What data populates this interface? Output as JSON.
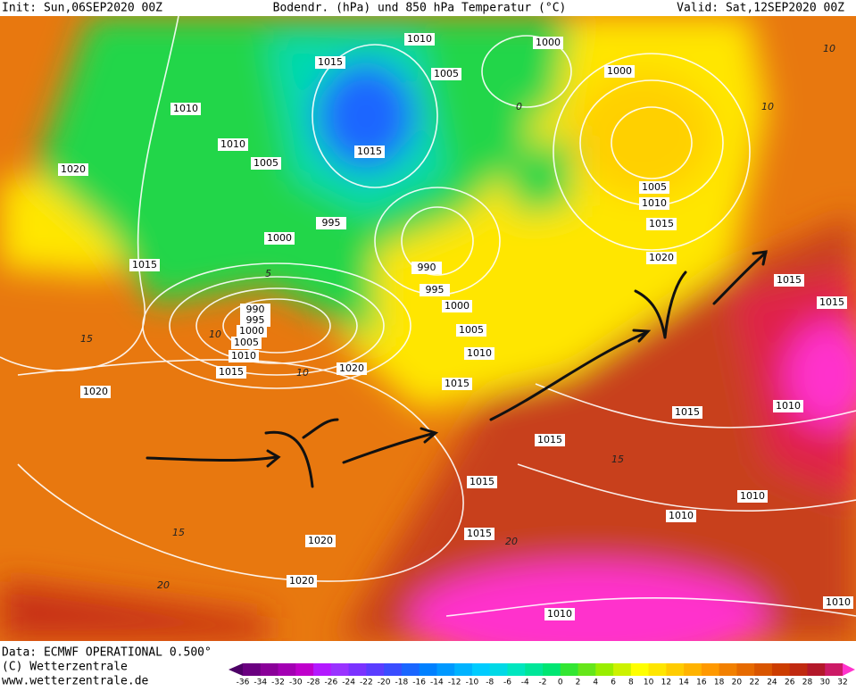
{
  "header": {
    "init": "Init: Sun,06SEP2020 00Z",
    "title": "Bodendr. (hPa) und 850 hPa Temperatur (°C)",
    "valid": "Valid: Sat,12SEP2020 00Z"
  },
  "isobar_labels": [
    1010,
    1015,
    1005,
    1000,
    1000,
    1010,
    1010,
    1005,
    1015,
    1020,
    1005,
    1010,
    1015,
    995,
    1000,
    1020,
    1015,
    990,
    995,
    1000,
    990,
    995,
    1000,
    1005,
    1015,
    1015,
    1005,
    1010,
    1010,
    1015,
    1020,
    1015,
    1020,
    1015,
    1010,
    1015,
    1015,
    1010,
    1010,
    1015,
    1020,
    1020,
    1010,
    1010
  ],
  "temperature_labels": [
    0,
    5,
    10,
    10,
    15,
    15,
    20,
    15,
    20,
    10,
    10
  ],
  "footer": {
    "data": "Data: ECMWF OPERATIONAL 0.500°",
    "copyright": "(C) Wetterzentrale",
    "url": "www.wetterzentrale.de"
  },
  "color_scale": {
    "labels": [
      -36,
      -34,
      -32,
      -30,
      -28,
      -26,
      -24,
      -22,
      -20,
      -18,
      -16,
      -14,
      -12,
      -10,
      -8,
      -6,
      -4,
      -2,
      0,
      2,
      4,
      6,
      8,
      10,
      12,
      14,
      16,
      18,
      20,
      22,
      24,
      26,
      28,
      30,
      32
    ],
    "colors": [
      "#4d0066",
      "#6a0080",
      "#8a0099",
      "#a300b3",
      "#bf00cc",
      "#b31aff",
      "#9933ff",
      "#7a33ff",
      "#5a3dff",
      "#3a4dff",
      "#1a66ff",
      "#0080ff",
      "#0099ff",
      "#00b3ff",
      "#00ccff",
      "#00d9e6",
      "#00e6bf",
      "#00e699",
      "#00e673",
      "#33e633",
      "#66e61a",
      "#99ee00",
      "#ccf200",
      "#ffff00",
      "#ffe600",
      "#ffcc00",
      "#ffb300",
      "#ff9900",
      "#f28000",
      "#e66a00",
      "#d95500",
      "#cc3d00",
      "#c02a10",
      "#b3182a",
      "#cc1a66",
      "#ff33cc"
    ]
  }
}
